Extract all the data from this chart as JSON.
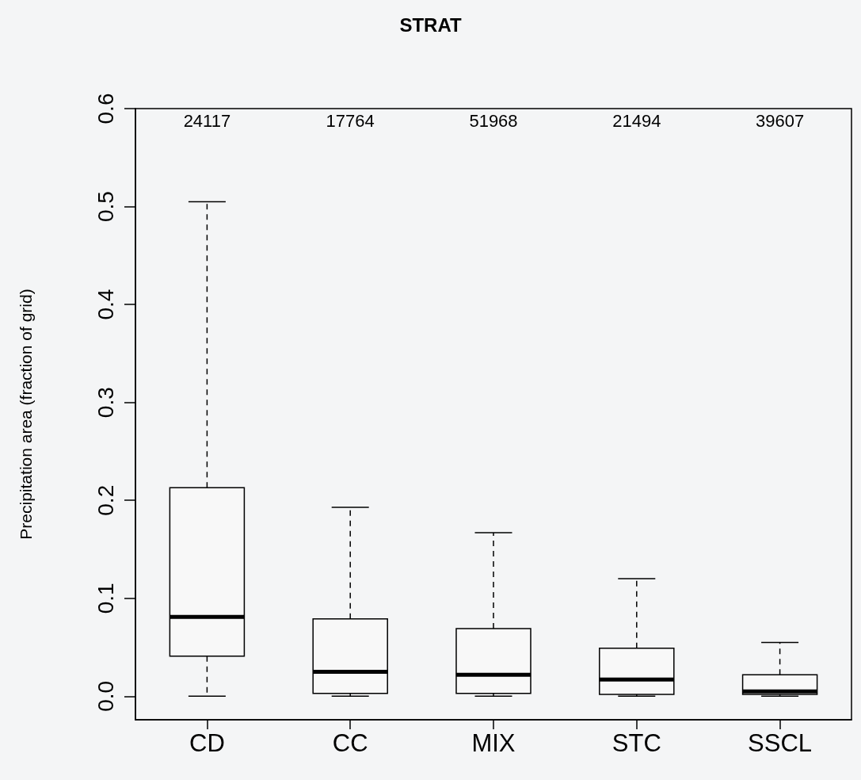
{
  "chart_data": {
    "type": "box",
    "title": "STRAT",
    "ylabel": "Precipitation area (fraction of grid)",
    "categories": [
      "CD",
      "CC",
      "MIX",
      "STC",
      "SSCL"
    ],
    "boxes": [
      {
        "low": 0,
        "q1": 0.041,
        "median": 0.081,
        "q3": 0.213,
        "high": 0.505
      },
      {
        "low": 0,
        "q1": 0.003,
        "median": 0.025,
        "q3": 0.079,
        "high": 0.193
      },
      {
        "low": 0,
        "q1": 0.003,
        "median": 0.022,
        "q3": 0.069,
        "high": 0.167
      },
      {
        "low": 0,
        "q1": 0.002,
        "median": 0.017,
        "q3": 0.049,
        "high": 0.12
      },
      {
        "low": 0,
        "q1": 0.002,
        "median": 0.005,
        "q3": 0.022,
        "high": 0.055
      }
    ],
    "annotations": [
      "24117",
      "17764",
      "51968",
      "21494",
      "39607"
    ],
    "ylim": [
      -0.024,
      0.6
    ],
    "yticks": [
      {
        "value": 0,
        "label": "0.0"
      },
      0.1,
      0.2,
      0.3,
      0.4,
      0.5,
      0.6
    ],
    "grid": false
  }
}
